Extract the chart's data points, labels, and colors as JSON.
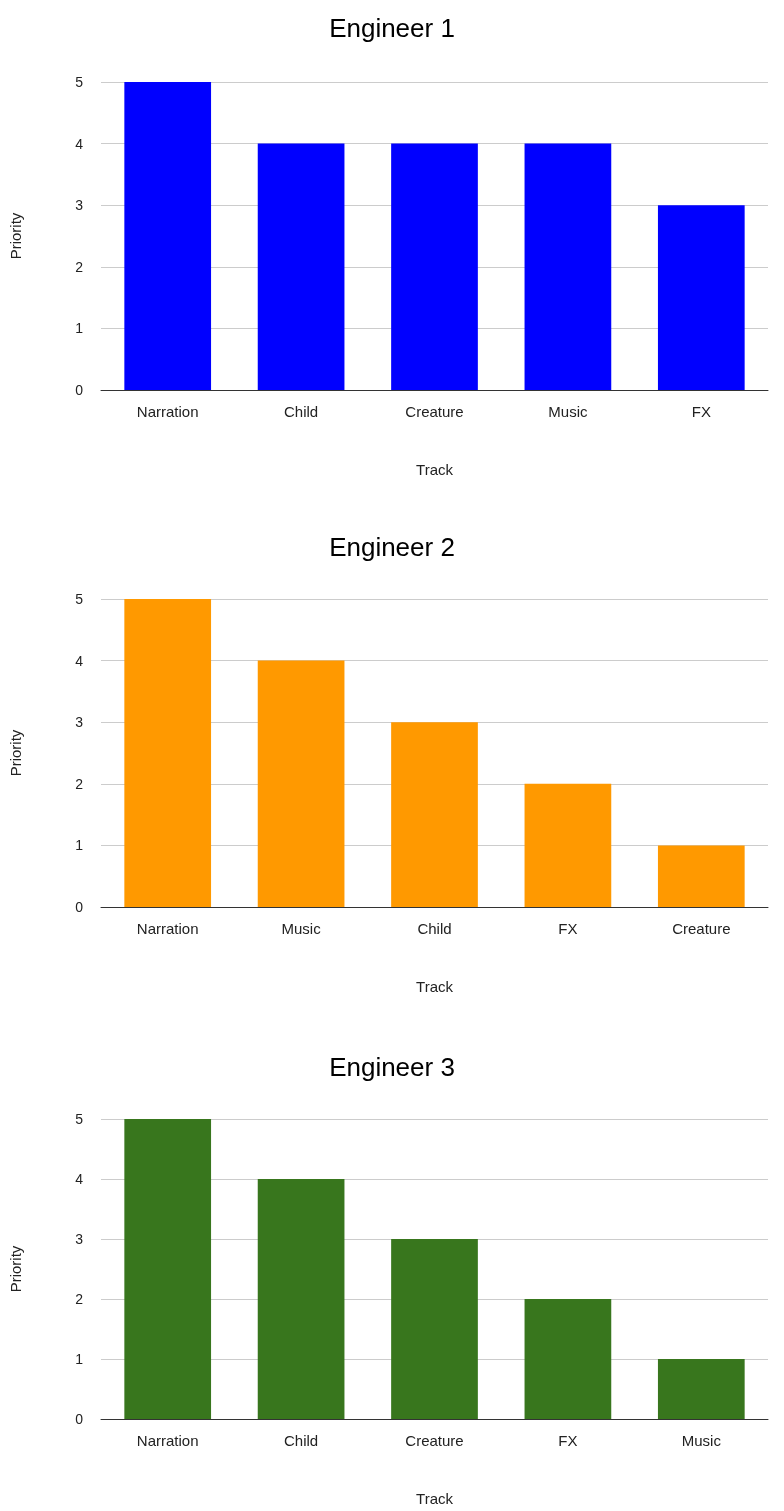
{
  "chart_data": [
    {
      "type": "bar",
      "title": "Engineer 1",
      "xlabel": "Track",
      "ylabel": "Priority",
      "categories": [
        "Narration",
        "Child",
        "Creature",
        "Music",
        "FX"
      ],
      "values": [
        5,
        4,
        4,
        4,
        3
      ],
      "color": "#0000ff",
      "ylim": [
        0,
        5
      ],
      "yticks": [
        0,
        1,
        2,
        3,
        4,
        5
      ],
      "grid": "y"
    },
    {
      "type": "bar",
      "title": "Engineer 2",
      "xlabel": "Track",
      "ylabel": "Priority",
      "categories": [
        "Narration",
        "Music",
        "Child",
        "FX",
        "Creature"
      ],
      "values": [
        5,
        4,
        3,
        2,
        1
      ],
      "color": "#ff9900",
      "ylim": [
        0,
        5
      ],
      "yticks": [
        0,
        1,
        2,
        3,
        4,
        5
      ],
      "grid": "y"
    },
    {
      "type": "bar",
      "title": "Engineer 3",
      "xlabel": "Track",
      "ylabel": "Priority",
      "categories": [
        "Narration",
        "Child",
        "Creature",
        "FX",
        "Music"
      ],
      "values": [
        5,
        4,
        3,
        2,
        1
      ],
      "color": "#38761d",
      "ylim": [
        0,
        5
      ],
      "yticks": [
        0,
        1,
        2,
        3,
        4,
        5
      ],
      "grid": "y"
    }
  ]
}
